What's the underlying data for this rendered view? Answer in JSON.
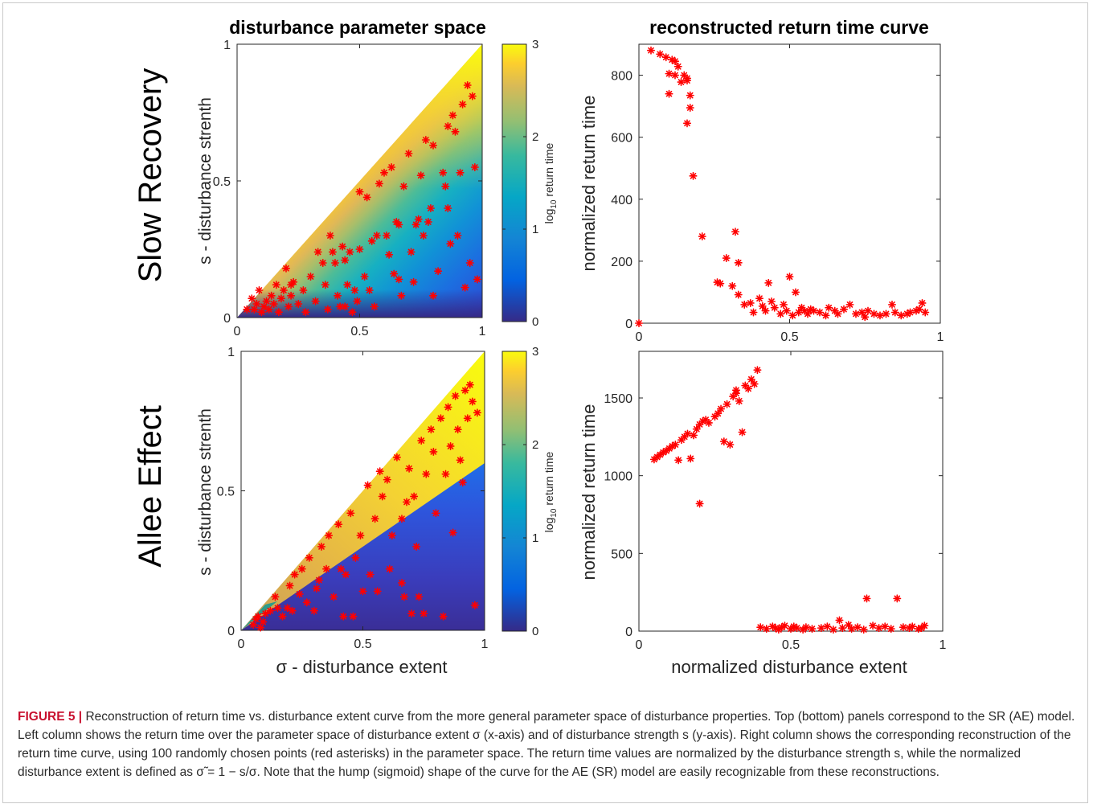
{
  "column_titles": {
    "left": "disturbance parameter space",
    "right": "reconstructed return time curve"
  },
  "row_titles": [
    "Slow Recovery",
    "Allee Effect"
  ],
  "colorbar": {
    "label_prefix": "log",
    "label_sub": "10",
    "label_suffix": " return time",
    "ticks": [
      "0",
      "1",
      "2",
      "3"
    ],
    "colormap": "parula"
  },
  "caption": {
    "label": "FIGURE 5 |",
    "text": "Reconstruction of return time vs. disturbance extent curve from the more general parameter space of disturbance properties. Top (bottom) panels correspond to the SR (AE) model. Left column shows the return time over the parameter space of disturbance extent σ (x-axis) and of disturbance strength s (y-axis). Right column shows the corresponding reconstruction of the return time curve, using 100 randomly chosen points (red asterisks) in the parameter space. The return time values are normalized by the disturbance strength s, while the normalized disturbance extent is defined as σ̃ = 1 − s/σ. Note that the hump (sigmoid) shape of the curve for the AE (SR) model are easily recognizable from these reconstructions."
  },
  "chart_data": [
    {
      "id": "sr-param",
      "type": "heatmap",
      "title": "disturbance parameter space",
      "xlabel": "",
      "ylabel": "s - disturbance strenth",
      "xlim": [
        0,
        1
      ],
      "ylim": [
        0,
        1
      ],
      "xticks": [
        "0",
        "0.5",
        "1"
      ],
      "yticks": [
        "0",
        "0.5",
        "1"
      ],
      "z_range": [
        0,
        3
      ],
      "z_description_values": {
        "low_band_at_s0": 0.2,
        "band_along_diagonal": 2.5,
        "max_at_top": 3
      },
      "marker_color": "#ff0000",
      "points": [
        [
          0.04,
          0.03
        ],
        [
          0.06,
          0.07
        ],
        [
          0.07,
          0.03
        ],
        [
          0.08,
          0.05
        ],
        [
          0.09,
          0.1
        ],
        [
          0.1,
          0.02
        ],
        [
          0.11,
          0.04
        ],
        [
          0.12,
          0.06
        ],
        [
          0.13,
          0.03
        ],
        [
          0.14,
          0.08
        ],
        [
          0.15,
          0.05
        ],
        [
          0.16,
          0.12
        ],
        [
          0.17,
          0.02
        ],
        [
          0.18,
          0.07
        ],
        [
          0.19,
          0.1
        ],
        [
          0.2,
          0.18
        ],
        [
          0.21,
          0.04
        ],
        [
          0.22,
          0.08
        ],
        [
          0.23,
          0.13
        ],
        [
          0.25,
          0.05
        ],
        [
          0.27,
          0.1
        ],
        [
          0.28,
          0.02
        ],
        [
          0.3,
          0.15
        ],
        [
          0.32,
          0.06
        ],
        [
          0.33,
          0.24
        ],
        [
          0.35,
          0.2
        ],
        [
          0.36,
          0.12
        ],
        [
          0.37,
          0.03
        ],
        [
          0.38,
          0.3
        ],
        [
          0.39,
          0.24
        ],
        [
          0.4,
          0.2
        ],
        [
          0.41,
          0.08
        ],
        [
          0.42,
          0.04
        ],
        [
          0.43,
          0.26
        ],
        [
          0.44,
          0.04
        ],
        [
          0.45,
          0.12
        ],
        [
          0.46,
          0.24
        ],
        [
          0.47,
          0.02
        ],
        [
          0.48,
          0.1
        ],
        [
          0.49,
          0.06
        ],
        [
          0.5,
          0.46
        ],
        [
          0.52,
          0.15
        ],
        [
          0.53,
          0.44
        ],
        [
          0.54,
          0.1
        ],
        [
          0.55,
          0.28
        ],
        [
          0.56,
          0.04
        ],
        [
          0.57,
          0.3
        ],
        [
          0.58,
          0.49
        ],
        [
          0.6,
          0.53
        ],
        [
          0.61,
          0.3
        ],
        [
          0.62,
          0.23
        ],
        [
          0.63,
          0.55
        ],
        [
          0.64,
          0.16
        ],
        [
          0.65,
          0.35
        ],
        [
          0.66,
          0.14
        ],
        [
          0.67,
          0.08
        ],
        [
          0.68,
          0.48
        ],
        [
          0.7,
          0.6
        ],
        [
          0.71,
          0.24
        ],
        [
          0.72,
          0.13
        ],
        [
          0.73,
          0.34
        ],
        [
          0.75,
          0.52
        ],
        [
          0.76,
          0.3
        ],
        [
          0.77,
          0.65
        ],
        [
          0.78,
          0.35
        ],
        [
          0.79,
          0.4
        ],
        [
          0.8,
          0.08
        ],
        [
          0.8,
          0.63
        ],
        [
          0.82,
          0.17
        ],
        [
          0.84,
          0.53
        ],
        [
          0.85,
          0.48
        ],
        [
          0.86,
          0.7
        ],
        [
          0.87,
          0.27
        ],
        [
          0.88,
          0.74
        ],
        [
          0.89,
          0.68
        ],
        [
          0.9,
          0.3
        ],
        [
          0.91,
          0.53
        ],
        [
          0.92,
          0.78
        ],
        [
          0.93,
          0.11
        ],
        [
          0.94,
          0.85
        ],
        [
          0.95,
          0.2
        ],
        [
          0.96,
          0.81
        ],
        [
          0.97,
          0.55
        ],
        [
          0.98,
          0.14
        ],
        [
          0.66,
          0.34
        ],
        [
          0.5,
          0.25
        ],
        [
          0.22,
          0.12
        ],
        [
          0.74,
          0.36
        ],
        [
          0.86,
          0.4
        ],
        [
          0.44,
          0.21
        ]
      ]
    },
    {
      "id": "sr-curve",
      "type": "scatter",
      "title": "reconstructed return time curve",
      "xlabel": "",
      "ylabel": "normalized return time",
      "xlim": [
        0,
        1
      ],
      "ylim": [
        0,
        900
      ],
      "xticks": [
        "0",
        "0.5",
        "1"
      ],
      "yticks": [
        "0",
        "200",
        "400",
        "600",
        "800"
      ],
      "marker_color": "#ff0000",
      "points": [
        [
          0.0,
          0
        ],
        [
          0.04,
          880
        ],
        [
          0.07,
          868
        ],
        [
          0.09,
          858
        ],
        [
          0.1,
          740
        ],
        [
          0.1,
          805
        ],
        [
          0.11,
          850
        ],
        [
          0.12,
          845
        ],
        [
          0.12,
          800
        ],
        [
          0.13,
          828
        ],
        [
          0.14,
          778
        ],
        [
          0.15,
          800
        ],
        [
          0.16,
          790
        ],
        [
          0.16,
          645
        ],
        [
          0.17,
          735
        ],
        [
          0.17,
          695
        ],
        [
          0.16,
          783
        ],
        [
          0.18,
          475
        ],
        [
          0.21,
          280
        ],
        [
          0.26,
          132
        ],
        [
          0.27,
          128
        ],
        [
          0.29,
          210
        ],
        [
          0.31,
          120
        ],
        [
          0.32,
          295
        ],
        [
          0.33,
          195
        ],
        [
          0.33,
          92
        ],
        [
          0.35,
          60
        ],
        [
          0.37,
          65
        ],
        [
          0.38,
          35
        ],
        [
          0.4,
          80
        ],
        [
          0.41,
          55
        ],
        [
          0.42,
          40
        ],
        [
          0.43,
          130
        ],
        [
          0.44,
          70
        ],
        [
          0.45,
          50
        ],
        [
          0.47,
          30
        ],
        [
          0.48,
          60
        ],
        [
          0.49,
          40
        ],
        [
          0.5,
          150
        ],
        [
          0.51,
          25
        ],
        [
          0.52,
          100
        ],
        [
          0.53,
          35
        ],
        [
          0.54,
          50
        ],
        [
          0.55,
          40
        ],
        [
          0.56,
          30
        ],
        [
          0.57,
          45
        ],
        [
          0.58,
          40
        ],
        [
          0.6,
          35
        ],
        [
          0.62,
          25
        ],
        [
          0.63,
          50
        ],
        [
          0.65,
          40
        ],
        [
          0.66,
          30
        ],
        [
          0.68,
          45
        ],
        [
          0.7,
          60
        ],
        [
          0.72,
          30
        ],
        [
          0.74,
          35
        ],
        [
          0.75,
          20
        ],
        [
          0.76,
          40
        ],
        [
          0.78,
          30
        ],
        [
          0.8,
          25
        ],
        [
          0.82,
          30
        ],
        [
          0.84,
          60
        ],
        [
          0.85,
          35
        ],
        [
          0.87,
          25
        ],
        [
          0.89,
          30
        ],
        [
          0.9,
          35
        ],
        [
          0.92,
          40
        ],
        [
          0.93,
          45
        ],
        [
          0.94,
          65
        ],
        [
          0.95,
          35
        ]
      ]
    },
    {
      "id": "ae-param",
      "type": "heatmap",
      "title": "",
      "xlabel": "σ - disturbance extent",
      "ylabel": "s - disturbance strenth",
      "xlim": [
        0,
        1
      ],
      "ylim": [
        0,
        1
      ],
      "xticks": [
        "0",
        "0.5",
        "1"
      ],
      "yticks": [
        "0",
        "0.5",
        "1"
      ],
      "z_range": [
        0,
        3
      ],
      "marker_color": "#ff0000",
      "points": [
        [
          0.05,
          0.02
        ],
        [
          0.06,
          0.04
        ],
        [
          0.07,
          0.05
        ],
        [
          0.08,
          0.01
        ],
        [
          0.09,
          0.03
        ],
        [
          0.1,
          0.06
        ],
        [
          0.12,
          0.07
        ],
        [
          0.14,
          0.12
        ],
        [
          0.15,
          0.08
        ],
        [
          0.17,
          0.05
        ],
        [
          0.19,
          0.08
        ],
        [
          0.2,
          0.16
        ],
        [
          0.21,
          0.07
        ],
        [
          0.22,
          0.2
        ],
        [
          0.24,
          0.13
        ],
        [
          0.25,
          0.22
        ],
        [
          0.27,
          0.1
        ],
        [
          0.28,
          0.26
        ],
        [
          0.3,
          0.07
        ],
        [
          0.31,
          0.15
        ],
        [
          0.32,
          0.18
        ],
        [
          0.33,
          0.3
        ],
        [
          0.35,
          0.22
        ],
        [
          0.36,
          0.34
        ],
        [
          0.38,
          0.12
        ],
        [
          0.4,
          0.38
        ],
        [
          0.41,
          0.22
        ],
        [
          0.42,
          0.05
        ],
        [
          0.43,
          0.2
        ],
        [
          0.45,
          0.42
        ],
        [
          0.46,
          0.05
        ],
        [
          0.47,
          0.26
        ],
        [
          0.49,
          0.34
        ],
        [
          0.5,
          0.14
        ],
        [
          0.52,
          0.52
        ],
        [
          0.53,
          0.2
        ],
        [
          0.55,
          0.4
        ],
        [
          0.56,
          0.14
        ],
        [
          0.58,
          0.48
        ],
        [
          0.6,
          0.54
        ],
        [
          0.61,
          0.22
        ],
        [
          0.62,
          0.34
        ],
        [
          0.64,
          0.62
        ],
        [
          0.66,
          0.4
        ],
        [
          0.67,
          0.12
        ],
        [
          0.69,
          0.58
        ],
        [
          0.7,
          0.06
        ],
        [
          0.71,
          0.48
        ],
        [
          0.72,
          0.3
        ],
        [
          0.74,
          0.68
        ],
        [
          0.75,
          0.06
        ],
        [
          0.76,
          0.56
        ],
        [
          0.78,
          0.72
        ],
        [
          0.79,
          0.64
        ],
        [
          0.8,
          0.42
        ],
        [
          0.82,
          0.76
        ],
        [
          0.83,
          0.05
        ],
        [
          0.84,
          0.56
        ],
        [
          0.85,
          0.8
        ],
        [
          0.86,
          0.66
        ],
        [
          0.88,
          0.84
        ],
        [
          0.89,
          0.72
        ],
        [
          0.9,
          0.61
        ],
        [
          0.91,
          0.53
        ],
        [
          0.92,
          0.86
        ],
        [
          0.93,
          0.76
        ],
        [
          0.94,
          0.88
        ],
        [
          0.95,
          0.82
        ],
        [
          0.96,
          0.09
        ],
        [
          0.97,
          0.78
        ],
        [
          0.57,
          0.57
        ],
        [
          0.68,
          0.46
        ],
        [
          0.73,
          0.12
        ],
        [
          0.87,
          0.35
        ],
        [
          0.66,
          0.17
        ]
      ]
    },
    {
      "id": "ae-curve",
      "type": "scatter",
      "title": "",
      "xlabel": "normalized disturbance extent",
      "ylabel": "normalized return time",
      "xlim": [
        0,
        1
      ],
      "ylim": [
        0,
        1800
      ],
      "xticks": [
        "0",
        "0.5",
        "1"
      ],
      "yticks": [
        "0",
        "500",
        "1000",
        "1500"
      ],
      "marker_color": "#ff0000",
      "points": [
        [
          0.05,
          1105
        ],
        [
          0.06,
          1120
        ],
        [
          0.07,
          1135
        ],
        [
          0.08,
          1150
        ],
        [
          0.09,
          1160
        ],
        [
          0.1,
          1175
        ],
        [
          0.11,
          1190
        ],
        [
          0.12,
          1200
        ],
        [
          0.13,
          1100
        ],
        [
          0.14,
          1230
        ],
        [
          0.15,
          1250
        ],
        [
          0.16,
          1270
        ],
        [
          0.17,
          1110
        ],
        [
          0.18,
          1260
        ],
        [
          0.19,
          1300
        ],
        [
          0.2,
          820
        ],
        [
          0.2,
          1330
        ],
        [
          0.21,
          1350
        ],
        [
          0.22,
          1360
        ],
        [
          0.23,
          1340
        ],
        [
          0.25,
          1380
        ],
        [
          0.26,
          1400
        ],
        [
          0.27,
          1430
        ],
        [
          0.28,
          1220
        ],
        [
          0.29,
          1460
        ],
        [
          0.3,
          1200
        ],
        [
          0.31,
          1510
        ],
        [
          0.32,
          1530
        ],
        [
          0.32,
          1550
        ],
        [
          0.33,
          1480
        ],
        [
          0.34,
          1280
        ],
        [
          0.35,
          1580
        ],
        [
          0.36,
          1560
        ],
        [
          0.37,
          1620
        ],
        [
          0.38,
          1590
        ],
        [
          0.39,
          1680
        ],
        [
          0.4,
          25
        ],
        [
          0.42,
          15
        ],
        [
          0.44,
          30
        ],
        [
          0.45,
          20
        ],
        [
          0.46,
          10
        ],
        [
          0.47,
          25
        ],
        [
          0.48,
          35
        ],
        [
          0.5,
          15
        ],
        [
          0.51,
          30
        ],
        [
          0.52,
          20
        ],
        [
          0.54,
          10
        ],
        [
          0.55,
          25
        ],
        [
          0.57,
          15
        ],
        [
          0.6,
          20
        ],
        [
          0.62,
          30
        ],
        [
          0.64,
          10
        ],
        [
          0.66,
          70
        ],
        [
          0.67,
          20
        ],
        [
          0.69,
          40
        ],
        [
          0.7,
          15
        ],
        [
          0.72,
          25
        ],
        [
          0.74,
          10
        ],
        [
          0.75,
          210
        ],
        [
          0.77,
          35
        ],
        [
          0.79,
          20
        ],
        [
          0.81,
          30
        ],
        [
          0.83,
          15
        ],
        [
          0.85,
          210
        ],
        [
          0.87,
          25
        ],
        [
          0.89,
          20
        ],
        [
          0.9,
          30
        ],
        [
          0.92,
          15
        ],
        [
          0.93,
          20
        ],
        [
          0.94,
          35
        ]
      ]
    }
  ]
}
